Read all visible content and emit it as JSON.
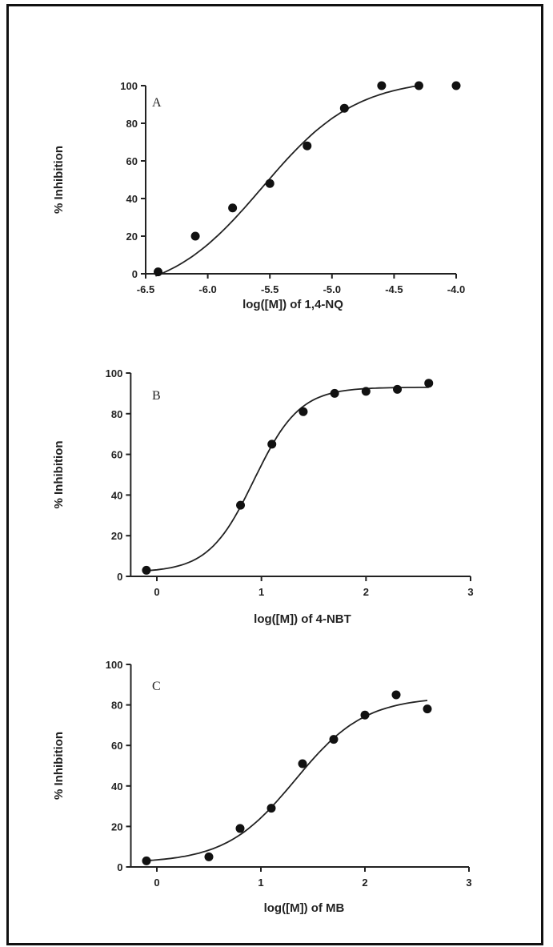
{
  "chart_data": [
    {
      "type": "scatter",
      "panel_label": "A",
      "xlabel": "log([M]) of 1,4-NQ",
      "ylabel": "% Inhibition",
      "xlim": [
        -6.5,
        -4.0
      ],
      "ylim": [
        0,
        100
      ],
      "xticks": [
        "-6.5",
        "-6.0",
        "-5.5",
        "-5.0",
        "-4.5",
        "-4.0"
      ],
      "yticks": [
        "0",
        "20",
        "40",
        "60",
        "80",
        "100"
      ],
      "xtick_values": [
        -6.5,
        -6.0,
        -5.5,
        -5.0,
        -4.5,
        -4.0
      ],
      "ytick_values": [
        0,
        20,
        40,
        60,
        80,
        100
      ],
      "points": [
        {
          "x": -6.4,
          "y": 1
        },
        {
          "x": -6.1,
          "y": 20
        },
        {
          "x": -5.8,
          "y": 35
        },
        {
          "x": -5.5,
          "y": 48
        },
        {
          "x": -5.2,
          "y": 68
        },
        {
          "x": -4.9,
          "y": 88
        },
        {
          "x": -4.6,
          "y": 100
        },
        {
          "x": -4.3,
          "y": 100
        },
        {
          "x": -4.0,
          "y": 100
        }
      ],
      "fit": {
        "bottom": -12,
        "top": 104,
        "log_ec50": -5.56,
        "hill": 1.15,
        "x_from": -6.42,
        "x_to": -4.3
      },
      "grid": false
    },
    {
      "type": "scatter",
      "panel_label": "B",
      "xlabel": "log([M]) of 4-NBT",
      "ylabel": "% Inhibition",
      "xlim": [
        -0.25,
        3
      ],
      "ylim": [
        0,
        100
      ],
      "xticks": [
        "0",
        "1",
        "2",
        "3"
      ],
      "yticks": [
        "0",
        "20",
        "40",
        "60",
        "80",
        "100"
      ],
      "xtick_values": [
        0,
        1,
        2,
        3
      ],
      "ytick_values": [
        0,
        20,
        40,
        60,
        80,
        100
      ],
      "points": [
        {
          "x": -0.1,
          "y": 3
        },
        {
          "x": 0.8,
          "y": 35
        },
        {
          "x": 1.1,
          "y": 65
        },
        {
          "x": 1.4,
          "y": 81
        },
        {
          "x": 1.7,
          "y": 90
        },
        {
          "x": 2.0,
          "y": 91
        },
        {
          "x": 2.3,
          "y": 92
        },
        {
          "x": 2.6,
          "y": 95
        }
      ],
      "fit": {
        "bottom": 2,
        "top": 93,
        "log_ec50": 0.93,
        "hill": 2.0,
        "x_from": -0.1,
        "x_to": 2.6
      },
      "grid": false
    },
    {
      "type": "scatter",
      "panel_label": "C",
      "xlabel": "log([M]) of MB",
      "ylabel": "% Inhibition",
      "xlim": [
        -0.25,
        3
      ],
      "ylim": [
        0,
        100
      ],
      "xticks": [
        "0",
        "1",
        "2",
        "3"
      ],
      "yticks": [
        "0",
        "20",
        "40",
        "60",
        "80",
        "100"
      ],
      "xtick_values": [
        0,
        1,
        2,
        3
      ],
      "ytick_values": [
        0,
        20,
        40,
        60,
        80,
        100
      ],
      "points": [
        {
          "x": -0.1,
          "y": 3
        },
        {
          "x": 0.5,
          "y": 5
        },
        {
          "x": 0.8,
          "y": 19
        },
        {
          "x": 1.1,
          "y": 29
        },
        {
          "x": 1.4,
          "y": 51
        },
        {
          "x": 1.7,
          "y": 63
        },
        {
          "x": 2.0,
          "y": 75
        },
        {
          "x": 2.3,
          "y": 85
        },
        {
          "x": 2.6,
          "y": 78
        }
      ],
      "fit": {
        "bottom": 2,
        "top": 84,
        "log_ec50": 1.33,
        "hill": 1.3,
        "x_from": -0.1,
        "x_to": 2.6
      },
      "grid": false
    }
  ]
}
